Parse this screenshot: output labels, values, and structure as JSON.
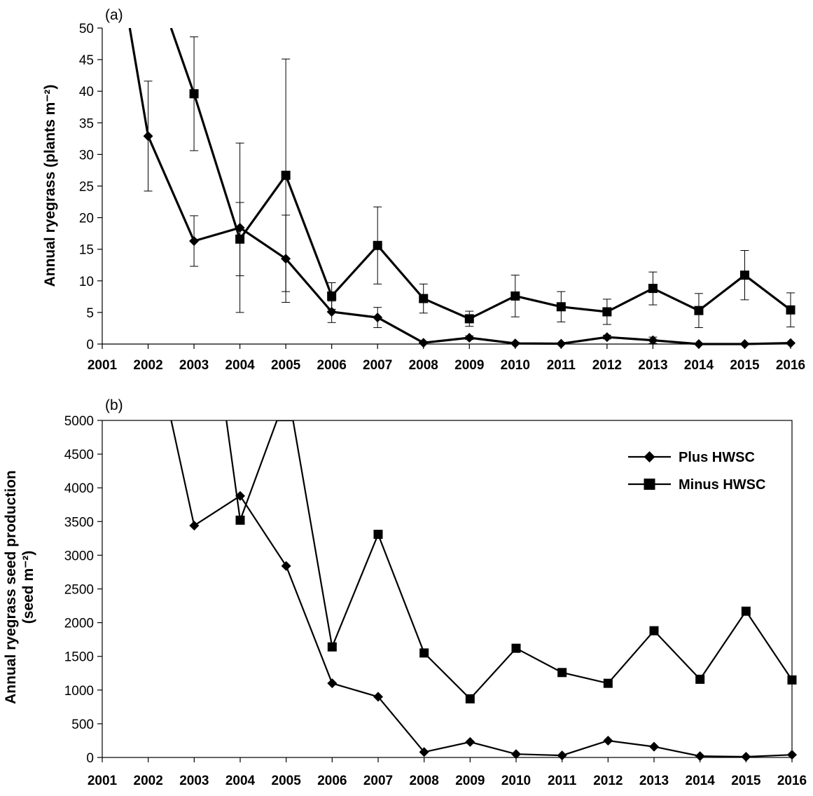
{
  "chart_data": [
    {
      "type": "line",
      "panel_label": "(a)",
      "ylabel": "Annual ryegrass (plants m⁻²)",
      "ylim": [
        0,
        50
      ],
      "yticks": [
        0,
        5,
        10,
        15,
        20,
        25,
        30,
        35,
        40,
        45,
        50
      ],
      "x": [
        2001,
        2002,
        2003,
        2004,
        2005,
        2006,
        2007,
        2008,
        2009,
        2010,
        2011,
        2012,
        2013,
        2014,
        2015,
        2016
      ],
      "xlim": [
        2001,
        2016
      ],
      "grid": false,
      "series": [
        {
          "name": "Plus HWSC",
          "marker": "diamond",
          "off_scale_start": {
            "x": 2001.6,
            "y": 50
          },
          "x": [
            2002,
            2003,
            2004,
            2005,
            2006,
            2007,
            2008,
            2009,
            2010,
            2011,
            2012,
            2013,
            2014,
            2015,
            2016
          ],
          "values": [
            32.9,
            16.3,
            18.4,
            13.5,
            5.1,
            4.2,
            0.2,
            1.0,
            0.1,
            0.05,
            1.1,
            0.6,
            0.0,
            0.0,
            0.15
          ],
          "error": [
            8.7,
            4.0,
            13.4,
            6.9,
            1.7,
            1.6,
            0.2,
            0.3,
            0.2,
            0.1,
            0.3,
            0.5,
            0.0,
            0.0,
            0.1
          ]
        },
        {
          "name": "Minus HWSC",
          "marker": "square",
          "off_scale_start": {
            "x": 2002.5,
            "y": 50
          },
          "x": [
            2003,
            2004,
            2005,
            2006,
            2007,
            2008,
            2009,
            2010,
            2011,
            2012,
            2013,
            2014,
            2015,
            2016
          ],
          "values": [
            39.6,
            16.6,
            26.7,
            7.6,
            15.6,
            7.2,
            4.0,
            7.6,
            5.9,
            5.1,
            8.8,
            5.3,
            10.9,
            5.4
          ],
          "error": [
            9.0,
            5.8,
            18.4,
            2.1,
            6.1,
            2.3,
            1.2,
            3.3,
            2.4,
            2.0,
            2.6,
            2.7,
            3.9,
            2.7
          ]
        }
      ]
    },
    {
      "type": "line",
      "panel_label": "(b)",
      "ylabel_lines": [
        "Annual ryegrass seed production",
        "(seed m⁻²)"
      ],
      "ylim": [
        0,
        5000
      ],
      "yticks": [
        0,
        500,
        1000,
        1500,
        2000,
        2500,
        3000,
        3500,
        4000,
        4500,
        5000
      ],
      "x": [
        2001,
        2002,
        2003,
        2004,
        2005,
        2006,
        2007,
        2008,
        2009,
        2010,
        2011,
        2012,
        2013,
        2014,
        2015,
        2016
      ],
      "xlim": [
        2001,
        2016
      ],
      "grid": false,
      "legend": {
        "placement": "top-right",
        "entries": [
          {
            "label": "Plus HWSC",
            "marker": "diamond"
          },
          {
            "label": "Minus HWSC",
            "marker": "square"
          }
        ]
      },
      "series": [
        {
          "name": "Plus HWSC",
          "marker": "diamond",
          "off_scale_start": {
            "x": 2002.5,
            "y": 5000
          },
          "x": [
            2003,
            2004,
            2005,
            2006,
            2007,
            2008,
            2009,
            2010,
            2011,
            2012,
            2013,
            2014,
            2015,
            2016
          ],
          "values": [
            3440,
            3880,
            2840,
            1100,
            900,
            80,
            230,
            50,
            30,
            250,
            160,
            20,
            10,
            40
          ]
        },
        {
          "name": "Minus HWSC",
          "marker": "square",
          "off_scale_start": {
            "x": 2003.7,
            "y": 5000
          },
          "off_scale_after": [
            {
              "x": 2004.8,
              "y": 5000
            },
            {
              "x": 2005.15,
              "y": 5000
            }
          ],
          "x": [
            2004,
            2006,
            2007,
            2008,
            2009,
            2010,
            2011,
            2012,
            2013,
            2014,
            2015,
            2016
          ],
          "values": [
            3520,
            1640,
            3310,
            1550,
            870,
            1620,
            1260,
            1100,
            1880,
            1160,
            2170,
            1150
          ]
        }
      ]
    }
  ]
}
